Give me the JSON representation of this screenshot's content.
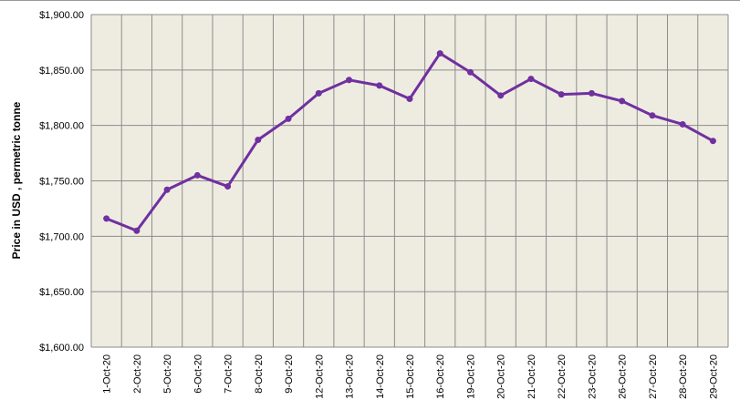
{
  "chart_data": {
    "type": "line",
    "y_label": "Price in USD , permetric tonne",
    "categories": [
      "1-Oct-20",
      "2-Oct-20",
      "5-Oct-20",
      "6-Oct-20",
      "7-Oct-20",
      "8-Oct-20",
      "9-Oct-20",
      "12-Oct-20",
      "13-Oct-20",
      "14-Oct-20",
      "15-Oct-20",
      "16-Oct-20",
      "19-Oct-20",
      "20-Oct-20",
      "21-Oct-20",
      "22-Oct-20",
      "23-Oct-20",
      "26-Oct-20",
      "27-Oct-20",
      "28-Oct-20",
      "29-Oct-20"
    ],
    "values": [
      1716,
      1705,
      1742,
      1755,
      1745,
      1787,
      1806,
      1829,
      1841,
      1836,
      1824,
      1865,
      1848,
      1827,
      1842,
      1828,
      1829,
      1822,
      1809,
      1801,
      1786
    ],
    "color": "#7030a0",
    "ylim": [
      1600,
      1900
    ],
    "yticks": [
      {
        "value": 1600,
        "label": "$1,600.00"
      },
      {
        "value": 1650,
        "label": "$1,650.00"
      },
      {
        "value": 1700,
        "label": "$1,700.00"
      },
      {
        "value": 1750,
        "label": "$1,750.00"
      },
      {
        "value": 1800,
        "label": "$1,800.00"
      },
      {
        "value": 1850,
        "label": "$1,850.00"
      },
      {
        "value": 1900,
        "label": "$1,900.00"
      }
    ],
    "grid": true
  }
}
